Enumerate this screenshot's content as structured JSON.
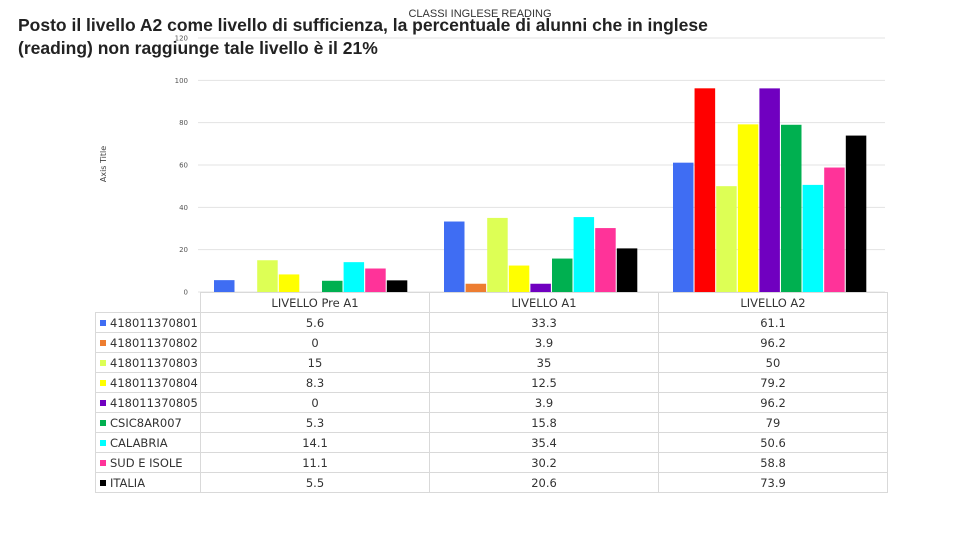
{
  "slide": {
    "title": "Posto il livello A2 come livello di sufficienza, la percentuale di alunni che in inglese (reading) non raggiunge tale livello è  il 21%"
  },
  "chart_data": {
    "type": "bar",
    "title": "CLASSI INGLESE READING",
    "ylabel": "Axis Title",
    "xlabel": "",
    "ylim": [
      0,
      120
    ],
    "yticks": [
      0,
      20,
      40,
      60,
      80,
      100,
      120
    ],
    "grid": true,
    "legend": "data-table-below",
    "categories": [
      "LIVELLO Pre A1",
      "LIVELLO A1",
      "LIVELLO A2"
    ],
    "series": [
      {
        "name": "418011370801",
        "color": "#3f6df3",
        "values": [
          5.6,
          33.3,
          61.1
        ],
        "labels": [
          "5.6",
          "33.3",
          "61.1"
        ]
      },
      {
        "name": "418011370802",
        "color": "#ed7d31",
        "values": [
          0,
          3.9,
          96.2
        ],
        "labels": [
          "0",
          "3.9",
          "96.2"
        ]
      },
      {
        "name": "418011370803",
        "color": "#ddff55",
        "values": [
          15,
          35,
          50
        ],
        "labels": [
          "15",
          "35",
          "50"
        ]
      },
      {
        "name": "418011370804",
        "color": "#ffff00",
        "values": [
          8.3,
          12.5,
          79.2
        ],
        "labels": [
          "8.3",
          "12.5",
          "79.2"
        ]
      },
      {
        "name": "418011370805",
        "color": "#7000c0",
        "values": [
          0,
          3.9,
          96.2
        ],
        "labels": [
          "0",
          "3.9",
          "96.2"
        ]
      },
      {
        "name": "CSIC8AR007",
        "color": "#00b050",
        "values": [
          5.3,
          15.8,
          79
        ],
        "labels": [
          "5.3",
          "15.8",
          "79"
        ]
      },
      {
        "name": "CALABRIA",
        "color": "#00ffff",
        "values": [
          14.1,
          35.4,
          50.6
        ],
        "labels": [
          "14.1",
          "35.4",
          "50.6"
        ]
      },
      {
        "name": "SUD E ISOLE",
        "color": "#ff3399",
        "values": [
          11.1,
          30.2,
          58.8
        ],
        "labels": [
          "11.1",
          "30.2",
          "58.8"
        ]
      },
      {
        "name": "ITALIA",
        "color": "#000000",
        "values": [
          5.5,
          20.6,
          73.9
        ],
        "labels": [
          "5.5",
          "20.6",
          "73.9"
        ]
      }
    ],
    "overlay_bar": {
      "color": "#ff0000",
      "category": "LIVELLO A2",
      "after_series": "418011370801",
      "value": 96.2
    }
  }
}
